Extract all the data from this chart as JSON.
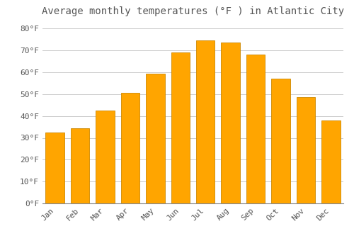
{
  "title": "Average monthly temperatures (°F ) in Atlantic City",
  "months": [
    "Jan",
    "Feb",
    "Mar",
    "Apr",
    "May",
    "Jun",
    "Jul",
    "Aug",
    "Sep",
    "Oct",
    "Nov",
    "Dec"
  ],
  "values": [
    32.5,
    34.5,
    42.5,
    50.5,
    59.5,
    69.0,
    74.5,
    73.5,
    68.0,
    57.0,
    48.5,
    38.0
  ],
  "bar_color": "#FFA500",
  "bar_edge_color": "#CC8800",
  "background_color": "#FFFFFF",
  "grid_color": "#CCCCCC",
  "text_color": "#555555",
  "ylim": [
    0,
    84
  ],
  "yticks": [
    0,
    10,
    20,
    30,
    40,
    50,
    60,
    70,
    80
  ],
  "ytick_labels": [
    "0°F",
    "10°F",
    "20°F",
    "30°F",
    "40°F",
    "50°F",
    "60°F",
    "70°F",
    "80°F"
  ],
  "title_fontsize": 10,
  "tick_fontsize": 8,
  "font_family": "monospace"
}
